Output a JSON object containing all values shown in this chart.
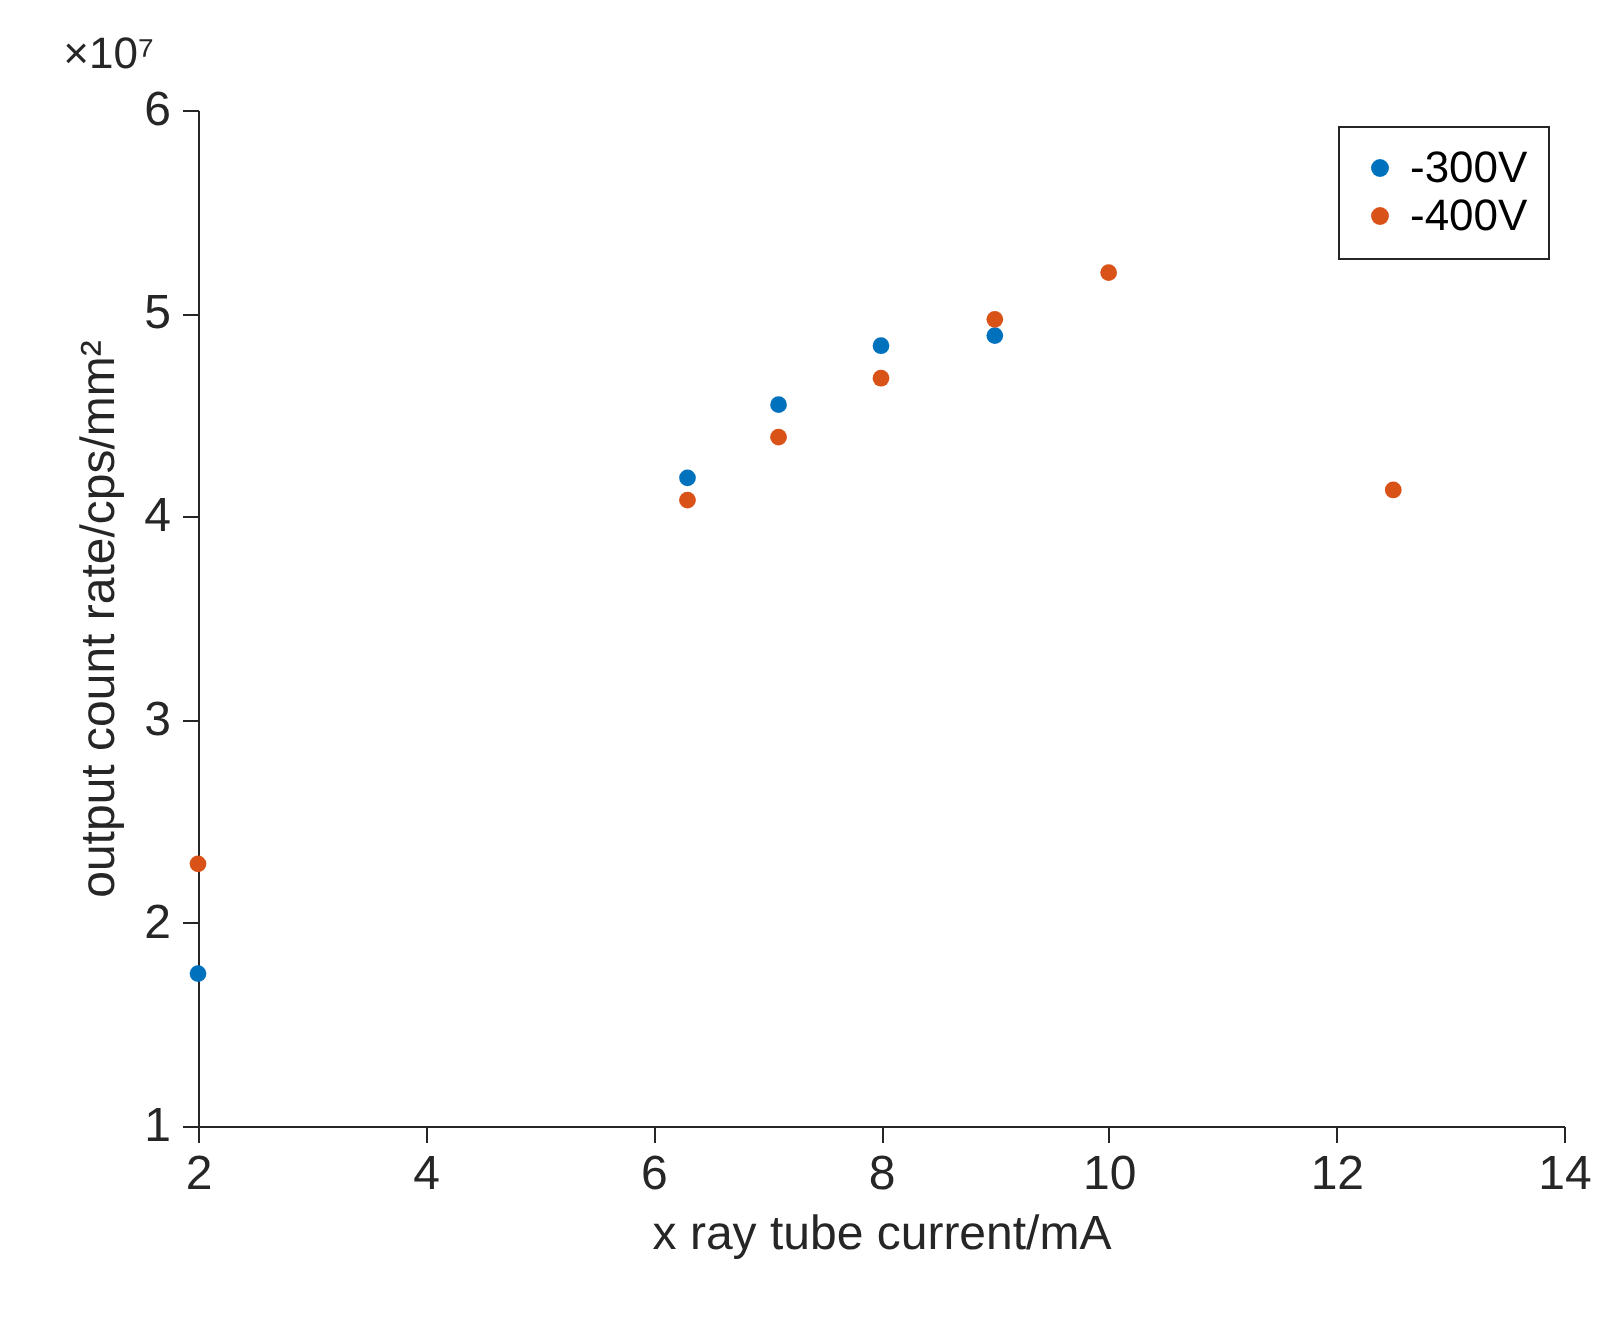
{
  "chart_data": {
    "type": "scatter",
    "xlabel": "x ray tube current/mA",
    "ylabel": "output count rate/cps/mm²",
    "annotations": [
      "×10⁷"
    ],
    "xlim": [
      2,
      14
    ],
    "xticks": [
      2,
      4,
      6,
      8,
      10,
      12,
      14
    ],
    "ylim": [
      1,
      6
    ],
    "yticks": [
      1,
      2,
      3,
      4,
      5,
      6
    ],
    "grid": false,
    "legend": "top right",
    "marker": "circle",
    "series": [
      {
        "name": "-300V",
        "color": "#0072bd",
        "x": [
          2,
          6.3,
          7.1,
          8,
          9
        ],
        "values": [
          1.75,
          4.19,
          4.55,
          4.84,
          4.89
        ]
      },
      {
        "name": "-400V",
        "color": "#d95319",
        "x": [
          2,
          6.3,
          7.1,
          8,
          9,
          10,
          12.5
        ],
        "values": [
          2.29,
          4.08,
          4.39,
          4.68,
          4.97,
          5.2,
          4.13
        ]
      }
    ]
  }
}
